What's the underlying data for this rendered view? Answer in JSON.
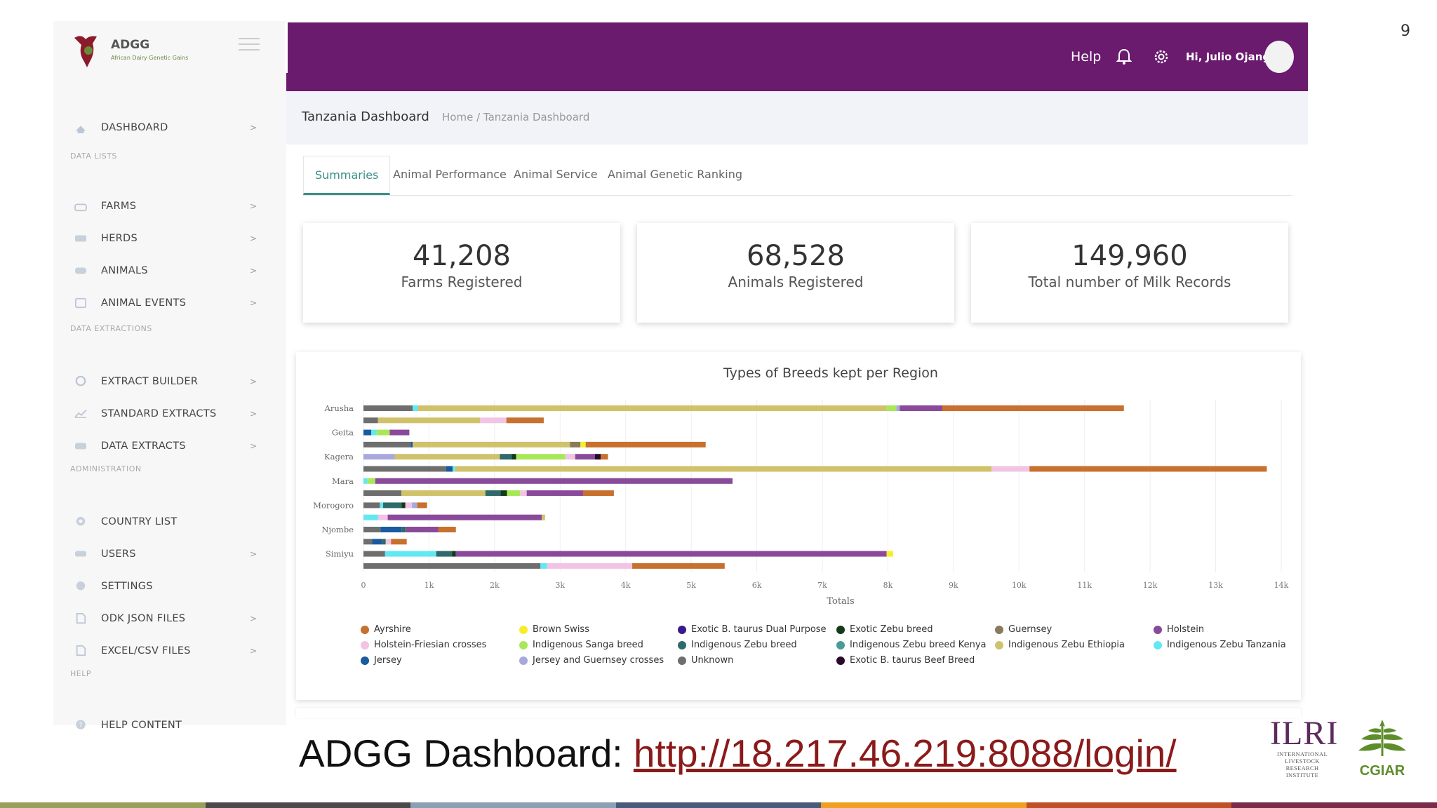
{
  "slide_number": "9",
  "sidebar": {
    "logo_name": "ADGG",
    "logo_sub": "African Dairy Genetic Gains",
    "items": [
      {
        "label": "DASHBOARD",
        "icon": "dashboard-icon",
        "chevron": ">"
      },
      {
        "label": "FARMS",
        "icon": "farm-icon",
        "chevron": ">"
      },
      {
        "label": "HERDS",
        "icon": "herd-icon",
        "chevron": ">"
      },
      {
        "label": "ANIMALS",
        "icon": "animal-icon",
        "chevron": ">"
      },
      {
        "label": "ANIMAL EVENTS",
        "icon": "calendar-icon",
        "chevron": ">"
      },
      {
        "label": "EXTRACT BUILDER",
        "icon": "extract-builder-icon",
        "chevron": ">"
      },
      {
        "label": "STANDARD EXTRACTS",
        "icon": "chart-line-icon",
        "chevron": ">"
      },
      {
        "label": "DATA EXTRACTS",
        "icon": "data-extract-icon",
        "chevron": ">"
      },
      {
        "label": "COUNTRY LIST",
        "icon": "globe-icon",
        "chevron": ""
      },
      {
        "label": "USERS",
        "icon": "users-icon",
        "chevron": ">"
      },
      {
        "label": "SETTINGS",
        "icon": "settings-icon",
        "chevron": ""
      },
      {
        "label": "ODK JSON FILES",
        "icon": "file-icon",
        "chevron": ">"
      },
      {
        "label": "EXCEL/CSV FILES",
        "icon": "spreadsheet-icon",
        "chevron": ">"
      },
      {
        "label": "HELP CONTENT",
        "icon": "help-icon",
        "chevron": ""
      }
    ],
    "sections": [
      "DATA LISTS",
      "DATA EXTRACTIONS",
      "ADMINISTRATION",
      "HELP"
    ]
  },
  "topbar": {
    "help": "Help",
    "user": "Hi, Julio Ojango",
    "color": "#6a1b6e"
  },
  "breadcrumb": {
    "title": "Tanzania Dashboard",
    "path": "Home / Tanzania Dashboard"
  },
  "tabs": [
    "Summaries",
    "Animal Performance",
    "Animal Service",
    "Animal Genetic Ranking"
  ],
  "stats": [
    {
      "value": "41,208",
      "label": "Farms Registered"
    },
    {
      "value": "68,528",
      "label": "Animals Registered"
    },
    {
      "value": "149,960",
      "label": "Total number of Milk Records"
    }
  ],
  "chart_data": {
    "type": "bar",
    "orientation": "horizontal-stacked",
    "title": "Types of Breeds kept per Region",
    "xlabel": "Totals",
    "xlim": [
      0,
      14000
    ],
    "xticks": [
      "0",
      "1k",
      "2k",
      "3k",
      "4k",
      "5k",
      "6k",
      "7k",
      "8k",
      "9k",
      "10k",
      "11k",
      "12k",
      "13k",
      "14k"
    ],
    "y_labels": [
      "Arusha",
      "Geita",
      "Kagera",
      "Mara",
      "Morogoro",
      "Njombe",
      "Simiyu"
    ],
    "legend_placement": "bottom",
    "breeds": [
      {
        "name": "Ayrshire",
        "color": "#c8702e"
      },
      {
        "name": "Brown Swiss",
        "color": "#f5ee2a"
      },
      {
        "name": "Exotic B. taurus Dual Purpose",
        "color": "#3a1a8a"
      },
      {
        "name": "Exotic Zebu breed",
        "color": "#143a1a"
      },
      {
        "name": "Guernsey",
        "color": "#8a7a5a"
      },
      {
        "name": "Holstein",
        "color": "#8a4a9a"
      },
      {
        "name": "Holstein-Friesian crosses",
        "color": "#f2c4e4"
      },
      {
        "name": "Indigenous Sanga breed",
        "color": "#a8e858"
      },
      {
        "name": "Indigenous Zebu breed",
        "color": "#2e6a6a"
      },
      {
        "name": "Indigenous Zebu breed Kenya",
        "color": "#4a9a9a"
      },
      {
        "name": "Indigenous Zebu Ethiopia",
        "color": "#cfc26a"
      },
      {
        "name": "Indigenous Zebu Tanzania",
        "color": "#62e8f2"
      },
      {
        "name": "Jersey",
        "color": "#1a5aa0"
      },
      {
        "name": "Jersey and Guernsey crosses",
        "color": "#a8a8dc"
      },
      {
        "name": "Unknown",
        "color": "#6e6e6e"
      },
      {
        "name": "Exotic B. taurus Beef Breed",
        "color": "#2a0a2a"
      }
    ],
    "rows": [
      {
        "segments": [
          [
            "Unknown",
            750
          ],
          [
            "Indigenous Zebu Tanzania",
            80
          ],
          [
            "Indigenous Zebu Ethiopia",
            7150
          ],
          [
            "Indigenous Sanga breed",
            150
          ],
          [
            "Jersey and Guernsey crosses",
            50
          ],
          [
            "Holstein",
            650
          ],
          [
            "Ayrshire",
            2770
          ]
        ]
      },
      {
        "segments": [
          [
            "Unknown",
            220
          ],
          [
            "Indigenous Zebu Ethiopia",
            1560
          ],
          [
            "Holstein-Friesian crosses",
            400
          ],
          [
            "Ayrshire",
            570
          ]
        ]
      },
      {
        "segments": [
          [
            "Jersey",
            120
          ],
          [
            "Indigenous Zebu Tanzania",
            80
          ],
          [
            "Indigenous Sanga breed",
            200
          ],
          [
            "Holstein",
            300
          ]
        ]
      },
      {
        "segments": [
          [
            "Unknown",
            720
          ],
          [
            "Jersey",
            30
          ],
          [
            "Indigenous Zebu Ethiopia",
            2400
          ],
          [
            "Guernsey",
            160
          ],
          [
            "Brown Swiss",
            80
          ],
          [
            "Ayrshire",
            1830
          ]
        ]
      },
      {
        "segments": [
          [
            "Jersey and Guernsey crosses",
            480
          ],
          [
            "Indigenous Zebu Ethiopia",
            1600
          ],
          [
            "Indigenous Zebu breed",
            180
          ],
          [
            "Exotic Zebu breed",
            70
          ],
          [
            "Indigenous Sanga breed",
            750
          ],
          [
            "Holstein-Friesian crosses",
            150
          ],
          [
            "Holstein",
            300
          ],
          [
            "Exotic B. taurus Beef Breed",
            90
          ],
          [
            "Ayrshire",
            110
          ]
        ]
      },
      {
        "segments": [
          [
            "Unknown",
            1260
          ],
          [
            "Jersey",
            100
          ],
          [
            "Indigenous Zebu Tanzania",
            40
          ],
          [
            "Indigenous Zebu Ethiopia",
            8180
          ],
          [
            "Holstein-Friesian crosses",
            580
          ],
          [
            "Ayrshire",
            3620
          ]
        ]
      },
      {
        "segments": [
          [
            "Indigenous Zebu Tanzania",
            60
          ],
          [
            "Indigenous Sanga breed",
            120
          ],
          [
            "Holstein",
            5450
          ]
        ]
      },
      {
        "segments": [
          [
            "Unknown",
            580
          ],
          [
            "Indigenous Zebu Ethiopia",
            1280
          ],
          [
            "Indigenous Zebu breed",
            230
          ],
          [
            "Exotic Zebu breed",
            100
          ],
          [
            "Indigenous Sanga breed",
            200
          ],
          [
            "Holstein-Friesian crosses",
            100
          ],
          [
            "Holstein",
            860
          ],
          [
            "Ayrshire",
            470
          ]
        ]
      },
      {
        "segments": [
          [
            "Unknown",
            250
          ],
          [
            "Indigenous Zebu Tanzania",
            50
          ],
          [
            "Indigenous Zebu breed",
            280
          ],
          [
            "Exotic Zebu breed",
            60
          ],
          [
            "Holstein-Friesian crosses",
            100
          ],
          [
            "Jersey and Guernsey crosses",
            80
          ],
          [
            "Ayrshire",
            150
          ]
        ]
      },
      {
        "segments": [
          [
            "Indigenous Zebu Tanzania",
            220
          ],
          [
            "Holstein-Friesian crosses",
            150
          ],
          [
            "Holstein",
            2350
          ],
          [
            "Indigenous Zebu Ethiopia",
            50
          ]
        ]
      },
      {
        "segments": [
          [
            "Unknown",
            260
          ],
          [
            "Jersey",
            320
          ],
          [
            "Indigenous Zebu breed",
            60
          ],
          [
            "Holstein",
            500
          ],
          [
            "Ayrshire",
            270
          ]
        ]
      },
      {
        "segments": [
          [
            "Unknown",
            130
          ],
          [
            "Jersey",
            150
          ],
          [
            "Indigenous Zebu breed",
            60
          ],
          [
            "Holstein-Friesian crosses",
            80
          ],
          [
            "Ayrshire",
            240
          ]
        ]
      },
      {
        "segments": [
          [
            "Unknown",
            330
          ],
          [
            "Indigenous Zebu Tanzania",
            780
          ],
          [
            "Indigenous Zebu breed",
            240
          ],
          [
            "Exotic Zebu breed",
            60
          ],
          [
            "Holstein",
            6570
          ],
          [
            "Brown Swiss",
            100
          ]
        ]
      },
      {
        "segments": [
          [
            "Unknown",
            2700
          ],
          [
            "Indigenous Zebu Tanzania",
            100
          ],
          [
            "Holstein-Friesian crosses",
            1300
          ],
          [
            "Ayrshire",
            1410
          ]
        ]
      }
    ]
  },
  "footer": {
    "label": "ADGG Dashboard: ",
    "url": "http://18.217.46.219:8088/login/"
  },
  "ilri": {
    "name": "ILRI",
    "line1": "INTERNATIONAL",
    "line2": "LIVESTOCK RESEARCH",
    "line3": "INSTITUTE"
  },
  "cgiar": "CGIAR",
  "strip_colors": [
    "#9aa05a",
    "#4a4a4a",
    "#8aa0b4",
    "#4a5a7a",
    "#f0a020",
    "#c0502a",
    "#7a2a4a"
  ]
}
